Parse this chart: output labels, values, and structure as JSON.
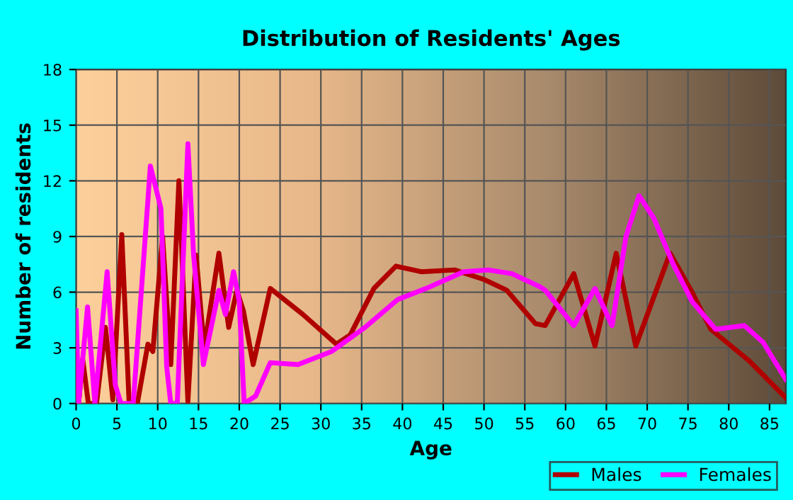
{
  "chart_data": {
    "type": "line",
    "title": "Distribution of Residents' Ages",
    "xlabel": "Age",
    "ylabel": "Number of residents",
    "xlim": [
      0,
      87
    ],
    "xticks": [
      0,
      5,
      10,
      15,
      20,
      25,
      30,
      35,
      40,
      45,
      50,
      55,
      60,
      65,
      70,
      75,
      80,
      85
    ],
    "ylim": [
      0,
      18
    ],
    "yticks": [
      0,
      3,
      6,
      9,
      12,
      15,
      18
    ],
    "grid": true,
    "legend": "bottom right",
    "marker": "none",
    "line_style": "solid",
    "series": [
      {
        "name": "Males",
        "color": "#b00000",
        "x": [
          0,
          0.3,
          0.8,
          1.5,
          2.5,
          3.6,
          4.5,
          5.6,
          6.5,
          7.5,
          8.8,
          9.4,
          10.6,
          11.6,
          12.6,
          13.7,
          14.7,
          15.7,
          17.5,
          18.7,
          19.7,
          20.5,
          21.7,
          23.8,
          27.8,
          31.9,
          33.6,
          36.5,
          39.2,
          42.3,
          46.4,
          49.9,
          52.8,
          56.3,
          57.5,
          61,
          63.6,
          66.2,
          68.6,
          72.8,
          75.5,
          77.8,
          82.5,
          87
        ],
        "values": [
          3.2,
          0,
          2.4,
          0,
          0,
          4.1,
          0.2,
          9.1,
          0,
          0,
          3.2,
          2.8,
          9,
          2.1,
          12,
          0.1,
          8,
          3,
          8.1,
          4.1,
          6.1,
          5,
          2.1,
          6.2,
          4.8,
          3.2,
          3.7,
          6.2,
          7.4,
          7.1,
          7.2,
          6.7,
          6.1,
          4.3,
          4.2,
          7,
          3.1,
          8.1,
          3.1,
          8.1,
          6,
          4,
          2.3,
          0.3
        ]
      },
      {
        "name": "Females",
        "color": "#ff00ff",
        "x": [
          0,
          0.3,
          1.4,
          2.3,
          3.8,
          4.8,
          5.5,
          7,
          9.1,
          10.4,
          11.1,
          11.6,
          12.4,
          13.7,
          14.4,
          15.6,
          17.5,
          18.3,
          19.3,
          20,
          20.6,
          22,
          23.8,
          27.2,
          31.3,
          35.4,
          39.4,
          42.9,
          47.5,
          50.5,
          53.4,
          56.8,
          57.5,
          61,
          63.6,
          65.7,
          67.4,
          69,
          70.8,
          73.2,
          75.5,
          78.4,
          81.9,
          84.2,
          87
        ],
        "values": [
          5,
          0,
          5.2,
          0,
          7.1,
          1,
          0,
          0,
          12.8,
          10.5,
          2,
          0,
          0,
          14,
          8,
          2.1,
          6.1,
          4.8,
          7.1,
          5.5,
          0,
          0.4,
          2.2,
          2.1,
          2.8,
          4.1,
          5.6,
          6.2,
          7.1,
          7.2,
          7,
          6.3,
          6.1,
          4.2,
          6.2,
          4.2,
          9,
          11.2,
          10,
          7.5,
          5.5,
          4,
          4.2,
          3.3,
          1.3
        ]
      }
    ]
  }
}
